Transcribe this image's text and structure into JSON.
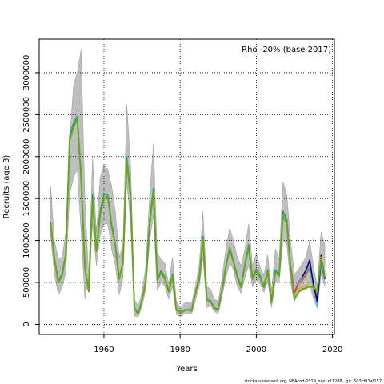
{
  "chart_data": {
    "type": "line",
    "title": "",
    "xlabel": "Years",
    "ylabel": "Recruits (age 3)",
    "xlim": [
      1943,
      2020.5
    ],
    "ylim": [
      -120000,
      3400000
    ],
    "x_ticks": [
      1960,
      1980,
      2000,
      2020
    ],
    "x_tick_labels": [
      "1960",
      "1980",
      "2000",
      "2020"
    ],
    "y_ticks": [
      0,
      500000,
      1000000,
      1500000,
      2000000,
      2500000,
      3000000
    ],
    "y_tick_labels": [
      "0",
      "500000",
      "1000000",
      "1500000",
      "2000000",
      "2500000",
      "3000000"
    ],
    "grid": true,
    "legend_text": "Rho -20% (base 2017)",
    "legend_position": "top-right",
    "footer": "stockassessment.org, NEAcod-2019_exp, r11288 , git: 503cf91af157",
    "colors": {
      "band": "#bebebe",
      "base": "#66a61e",
      "grid": "#000000"
    },
    "band": {
      "x": [
        1946,
        1947,
        1948,
        1949,
        1950,
        1951,
        1952,
        1953,
        1954,
        1955,
        1956,
        1957,
        1958,
        1959,
        1960,
        1961,
        1962,
        1963,
        1964,
        1965,
        1966,
        1967,
        1968,
        1969,
        1970,
        1971,
        1972,
        1973,
        1974,
        1975,
        1976,
        1977,
        1978,
        1979,
        1980,
        1981,
        1982,
        1983,
        1984,
        1985,
        1986,
        1987,
        1988,
        1989,
        1990,
        1991,
        1992,
        1993,
        1994,
        1995,
        1996,
        1997,
        1998,
        1999,
        2000,
        2001,
        2002,
        2003,
        2004,
        2005,
        2006,
        2007,
        2008,
        2009,
        2010,
        2011,
        2012,
        2013,
        2014,
        2015,
        2016,
        2017,
        2018
      ],
      "lower": [
        1050000,
        600000,
        350000,
        430000,
        620000,
        1550000,
        1750000,
        1850000,
        1100000,
        300000,
        550000,
        1200000,
        700000,
        1050000,
        1200000,
        1200000,
        900000,
        700000,
        350000,
        550000,
        1700000,
        1200000,
        100000,
        90000,
        220000,
        420000,
        1000000,
        1300000,
        400000,
        500000,
        450000,
        300000,
        450000,
        120000,
        90000,
        120000,
        130000,
        120000,
        280000,
        450000,
        800000,
        200000,
        220000,
        150000,
        130000,
        330000,
        550000,
        730000,
        650000,
        450000,
        370000,
        560000,
        700000,
        450000,
        520000,
        480000,
        380000,
        520000,
        200000,
        500000,
        500000,
        1000000,
        950000,
        500000,
        270000,
        380000,
        400000,
        420000,
        480000,
        300000,
        200000,
        600000,
        450000
      ],
      "upper": [
        1650000,
        1000000,
        780000,
        800000,
        1100000,
        2200000,
        2850000,
        3000000,
        3280000,
        1500000,
        570000,
        2000000,
        1100000,
        1750000,
        1900000,
        1850000,
        1650000,
        1350000,
        800000,
        950000,
        2620000,
        1900000,
        300000,
        220000,
        390000,
        700000,
        1550000,
        2150000,
        850000,
        780000,
        730000,
        480000,
        800000,
        280000,
        200000,
        250000,
        260000,
        250000,
        450000,
        700000,
        1350000,
        450000,
        420000,
        300000,
        280000,
        550000,
        900000,
        1150000,
        1000000,
        800000,
        700000,
        900000,
        1200000,
        700000,
        840000,
        680000,
        590000,
        830000,
        400000,
        900000,
        780000,
        1700000,
        1550000,
        1000000,
        600000,
        650000,
        720000,
        800000,
        1000000,
        700000,
        450000,
        1100000,
        950000
      ]
    },
    "series": [
      {
        "color": "#1b9e77",
        "x": [
          1946,
          1947,
          1948,
          1949,
          1950,
          1951,
          1952,
          1953,
          1954,
          1955,
          1956,
          1957,
          1958,
          1959,
          1960,
          1961,
          1962,
          1963,
          1964,
          1965,
          1966,
          1967,
          1968,
          1969,
          1970,
          1971,
          1972,
          1973,
          1974,
          1975,
          1976,
          1977,
          1978,
          1979,
          1980,
          1981,
          1982,
          1983,
          1984,
          1985,
          1986,
          1987,
          1988,
          1989,
          1990,
          1991,
          1992,
          1993,
          1994,
          1995,
          1996,
          1997,
          1998,
          1999,
          2000,
          2001,
          2002,
          2003,
          2004,
          2005,
          2006,
          2007,
          2008,
          2009,
          2010,
          2011,
          2012,
          2013,
          2014,
          2015,
          2016,
          2017,
          2018
        ],
        "y": [
          1220000,
          800000,
          520000,
          600000,
          850000,
          2250000,
          2400000,
          2480000,
          1800000,
          700000,
          400000,
          1550000,
          900000,
          1350000,
          1550000,
          1550000,
          1200000,
          950000,
          550000,
          750000,
          2000000,
          1550000,
          200000,
          130000,
          300000,
          530000,
          1250000,
          1620000,
          550000,
          640000,
          560000,
          400000,
          600000,
          190000,
          140000,
          170000,
          180000,
          170000,
          380000,
          550000,
          1050000,
          300000,
          280000,
          200000,
          180000,
          420000,
          700000,
          920000,
          760000,
          580000,
          460000,
          720000,
          950000,
          560000,
          660000,
          580000,
          460000,
          650000,
          270000,
          650000,
          600000,
          1350000,
          1250000,
          700000,
          380000,
          500000,
          540000,
          600000,
          660000,
          430000,
          300000,
          800000,
          560000
        ]
      },
      {
        "color": "#d95f02",
        "x": [
          2008,
          2009,
          2010,
          2011,
          2012,
          2013,
          2014,
          2015,
          2016,
          2017,
          2018
        ],
        "y": [
          1230000,
          680000,
          370000,
          470000,
          520000,
          580000,
          700000,
          470000,
          330000,
          820000,
          560000
        ]
      },
      {
        "color": "#7570b3",
        "x": [
          2008,
          2009,
          2010,
          2011,
          2012,
          2013,
          2014,
          2015,
          2016,
          2017,
          2018
        ],
        "y": [
          1240000,
          700000,
          380000,
          500000,
          560000,
          640000,
          780000,
          460000,
          280000,
          780000,
          550000
        ]
      },
      {
        "color": "#e7298a",
        "x": [
          2009,
          2010,
          2011,
          2012,
          2013,
          2014,
          2015,
          2016,
          2017,
          2018
        ],
        "y": [
          690000,
          370000,
          490000,
          550000,
          620000,
          760000,
          450000,
          270000,
          800000,
          560000
        ]
      },
      {
        "color": "#e6ab02",
        "x": [
          2010,
          2011,
          2012,
          2013,
          2014,
          2015,
          2016,
          2017,
          2018
        ],
        "y": [
          360000,
          420000,
          450000,
          460000,
          510000,
          470000,
          400000,
          800000,
          560000
        ]
      },
      {
        "color": "#6baed6",
        "x": [
          2011,
          2012,
          2013,
          2014,
          2015,
          2016,
          2017,
          2018
        ],
        "y": [
          470000,
          540000,
          620000,
          700000,
          420000,
          200000,
          700000,
          540000
        ]
      },
      {
        "color": "#000080",
        "x": [
          2012,
          2013,
          2014,
          2015,
          2016,
          2017,
          2018
        ],
        "y": [
          560000,
          640000,
          760000,
          480000,
          270000,
          760000,
          540000
        ]
      },
      {
        "color": "#000000",
        "dashed": true,
        "x": [
          2016,
          2017,
          2018
        ],
        "y": [
          320000,
          820000,
          560000
        ]
      },
      {
        "color": "#66a61e",
        "x": [
          1946,
          1947,
          1948,
          1949,
          1950,
          1951,
          1952,
          1953,
          1954,
          1955,
          1956,
          1957,
          1958,
          1959,
          1960,
          1961,
          1962,
          1963,
          1964,
          1965,
          1966,
          1967,
          1968,
          1969,
          1970,
          1971,
          1972,
          1973,
          1974,
          1975,
          1976,
          1977,
          1978,
          1979,
          1980,
          1981,
          1982,
          1983,
          1984,
          1985,
          1986,
          1987,
          1988,
          1989,
          1990,
          1991,
          1992,
          1993,
          1994,
          1995,
          1996,
          1997,
          1998,
          1999,
          2000,
          2001,
          2002,
          2003,
          2004,
          2005,
          2006,
          2007,
          2008,
          2009,
          2010,
          2011,
          2012,
          2013,
          2014,
          2015,
          2016,
          2017,
          2018
        ],
        "y": [
          1200000,
          780000,
          500000,
          580000,
          830000,
          2200000,
          2350000,
          2450000,
          1750000,
          680000,
          390000,
          1500000,
          870000,
          1300000,
          1500000,
          1530000,
          1180000,
          930000,
          540000,
          740000,
          1950000,
          1500000,
          190000,
          120000,
          290000,
          510000,
          1200000,
          1580000,
          530000,
          620000,
          540000,
          390000,
          580000,
          180000,
          135000,
          160000,
          175000,
          160000,
          370000,
          530000,
          1020000,
          290000,
          270000,
          190000,
          170000,
          400000,
          680000,
          900000,
          740000,
          560000,
          440000,
          700000,
          920000,
          540000,
          640000,
          560000,
          440000,
          630000,
          260000,
          620000,
          580000,
          1300000,
          1200000,
          680000,
          300000,
          380000,
          420000,
          430000,
          450000,
          440000,
          400000,
          780000,
          560000
        ]
      }
    ]
  }
}
